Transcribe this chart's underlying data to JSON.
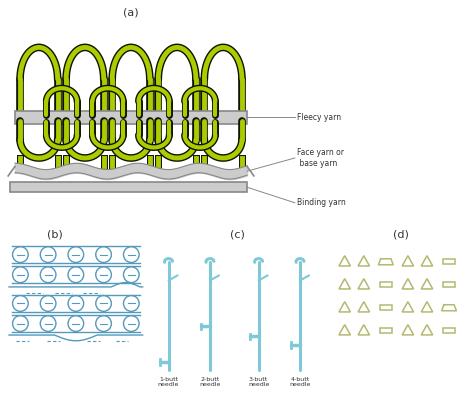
{
  "title_a": "(a)",
  "title_b": "(b)",
  "title_c": "(c)",
  "title_d": "(d)",
  "label_fleecy": "Fleecy yarn",
  "label_face": "Face yarn or\n base yarn",
  "label_binding": "Binding yarn",
  "needle_labels": [
    "1-butt\nneedle",
    "2-butt\nneedle",
    "3-butt\nneedle",
    "4-butt\nneedle"
  ],
  "yarn_green": "#aacc00",
  "yarn_green_dark": "#111100",
  "yarn_gray": "#cccccc",
  "yarn_gray_dark": "#999999",
  "blue_needle": "#7ec8d8",
  "blue_line": "#5599bb",
  "olive": "#b5b870",
  "bg": "#ffffff",
  "label_color": "#333333",
  "font_size_label": 5.5,
  "font_size_sub": 7
}
